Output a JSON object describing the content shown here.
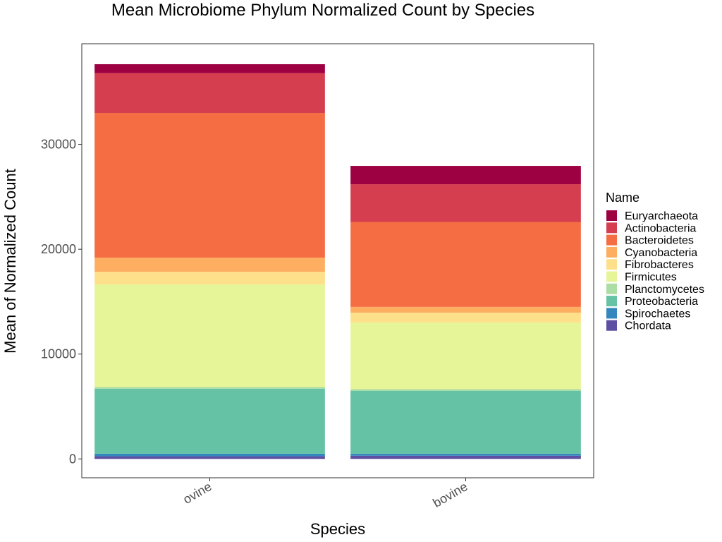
{
  "chart_data": {
    "type": "bar",
    "stacked": true,
    "title": "Mean Microbiome Phylum Normalized Count by Species",
    "xlabel": "Species",
    "ylabel": "Mean of Normalized Count",
    "categories": [
      "ovine",
      "bovine"
    ],
    "yticks": [
      "0",
      "10000",
      "20000",
      "30000"
    ],
    "ylim": [
      -1800,
      39600
    ],
    "grid": false,
    "legend": {
      "title": "Name",
      "placement": "right"
    },
    "series": [
      {
        "name": "Chordata",
        "color": "#5E4FA2",
        "values": [
          250,
          300
        ]
      },
      {
        "name": "Spirochaetes",
        "color": "#3288BD",
        "values": [
          250,
          200
        ]
      },
      {
        "name": "Proteobacteria",
        "color": "#66C2A5",
        "values": [
          6200,
          6000
        ]
      },
      {
        "name": "Planctomycetes",
        "color": "#ABDDA4",
        "values": [
          150,
          150
        ]
      },
      {
        "name": "Firmicutes",
        "color": "#E6F598",
        "values": [
          9800,
          6350
        ]
      },
      {
        "name": "Fibrobacteres",
        "color": "#FEE08B",
        "values": [
          1200,
          950
        ]
      },
      {
        "name": "Cyanobacteria",
        "color": "#FDAE61",
        "values": [
          1350,
          550
        ]
      },
      {
        "name": "Bacteroidetes",
        "color": "#F46D43",
        "values": [
          13800,
          8100
        ]
      },
      {
        "name": "Actinobacteria",
        "color": "#D53E4F",
        "values": [
          3800,
          3600
        ]
      },
      {
        "name": "Euryarchaeota",
        "color": "#9E0142",
        "values": [
          850,
          1750
        ]
      }
    ]
  }
}
